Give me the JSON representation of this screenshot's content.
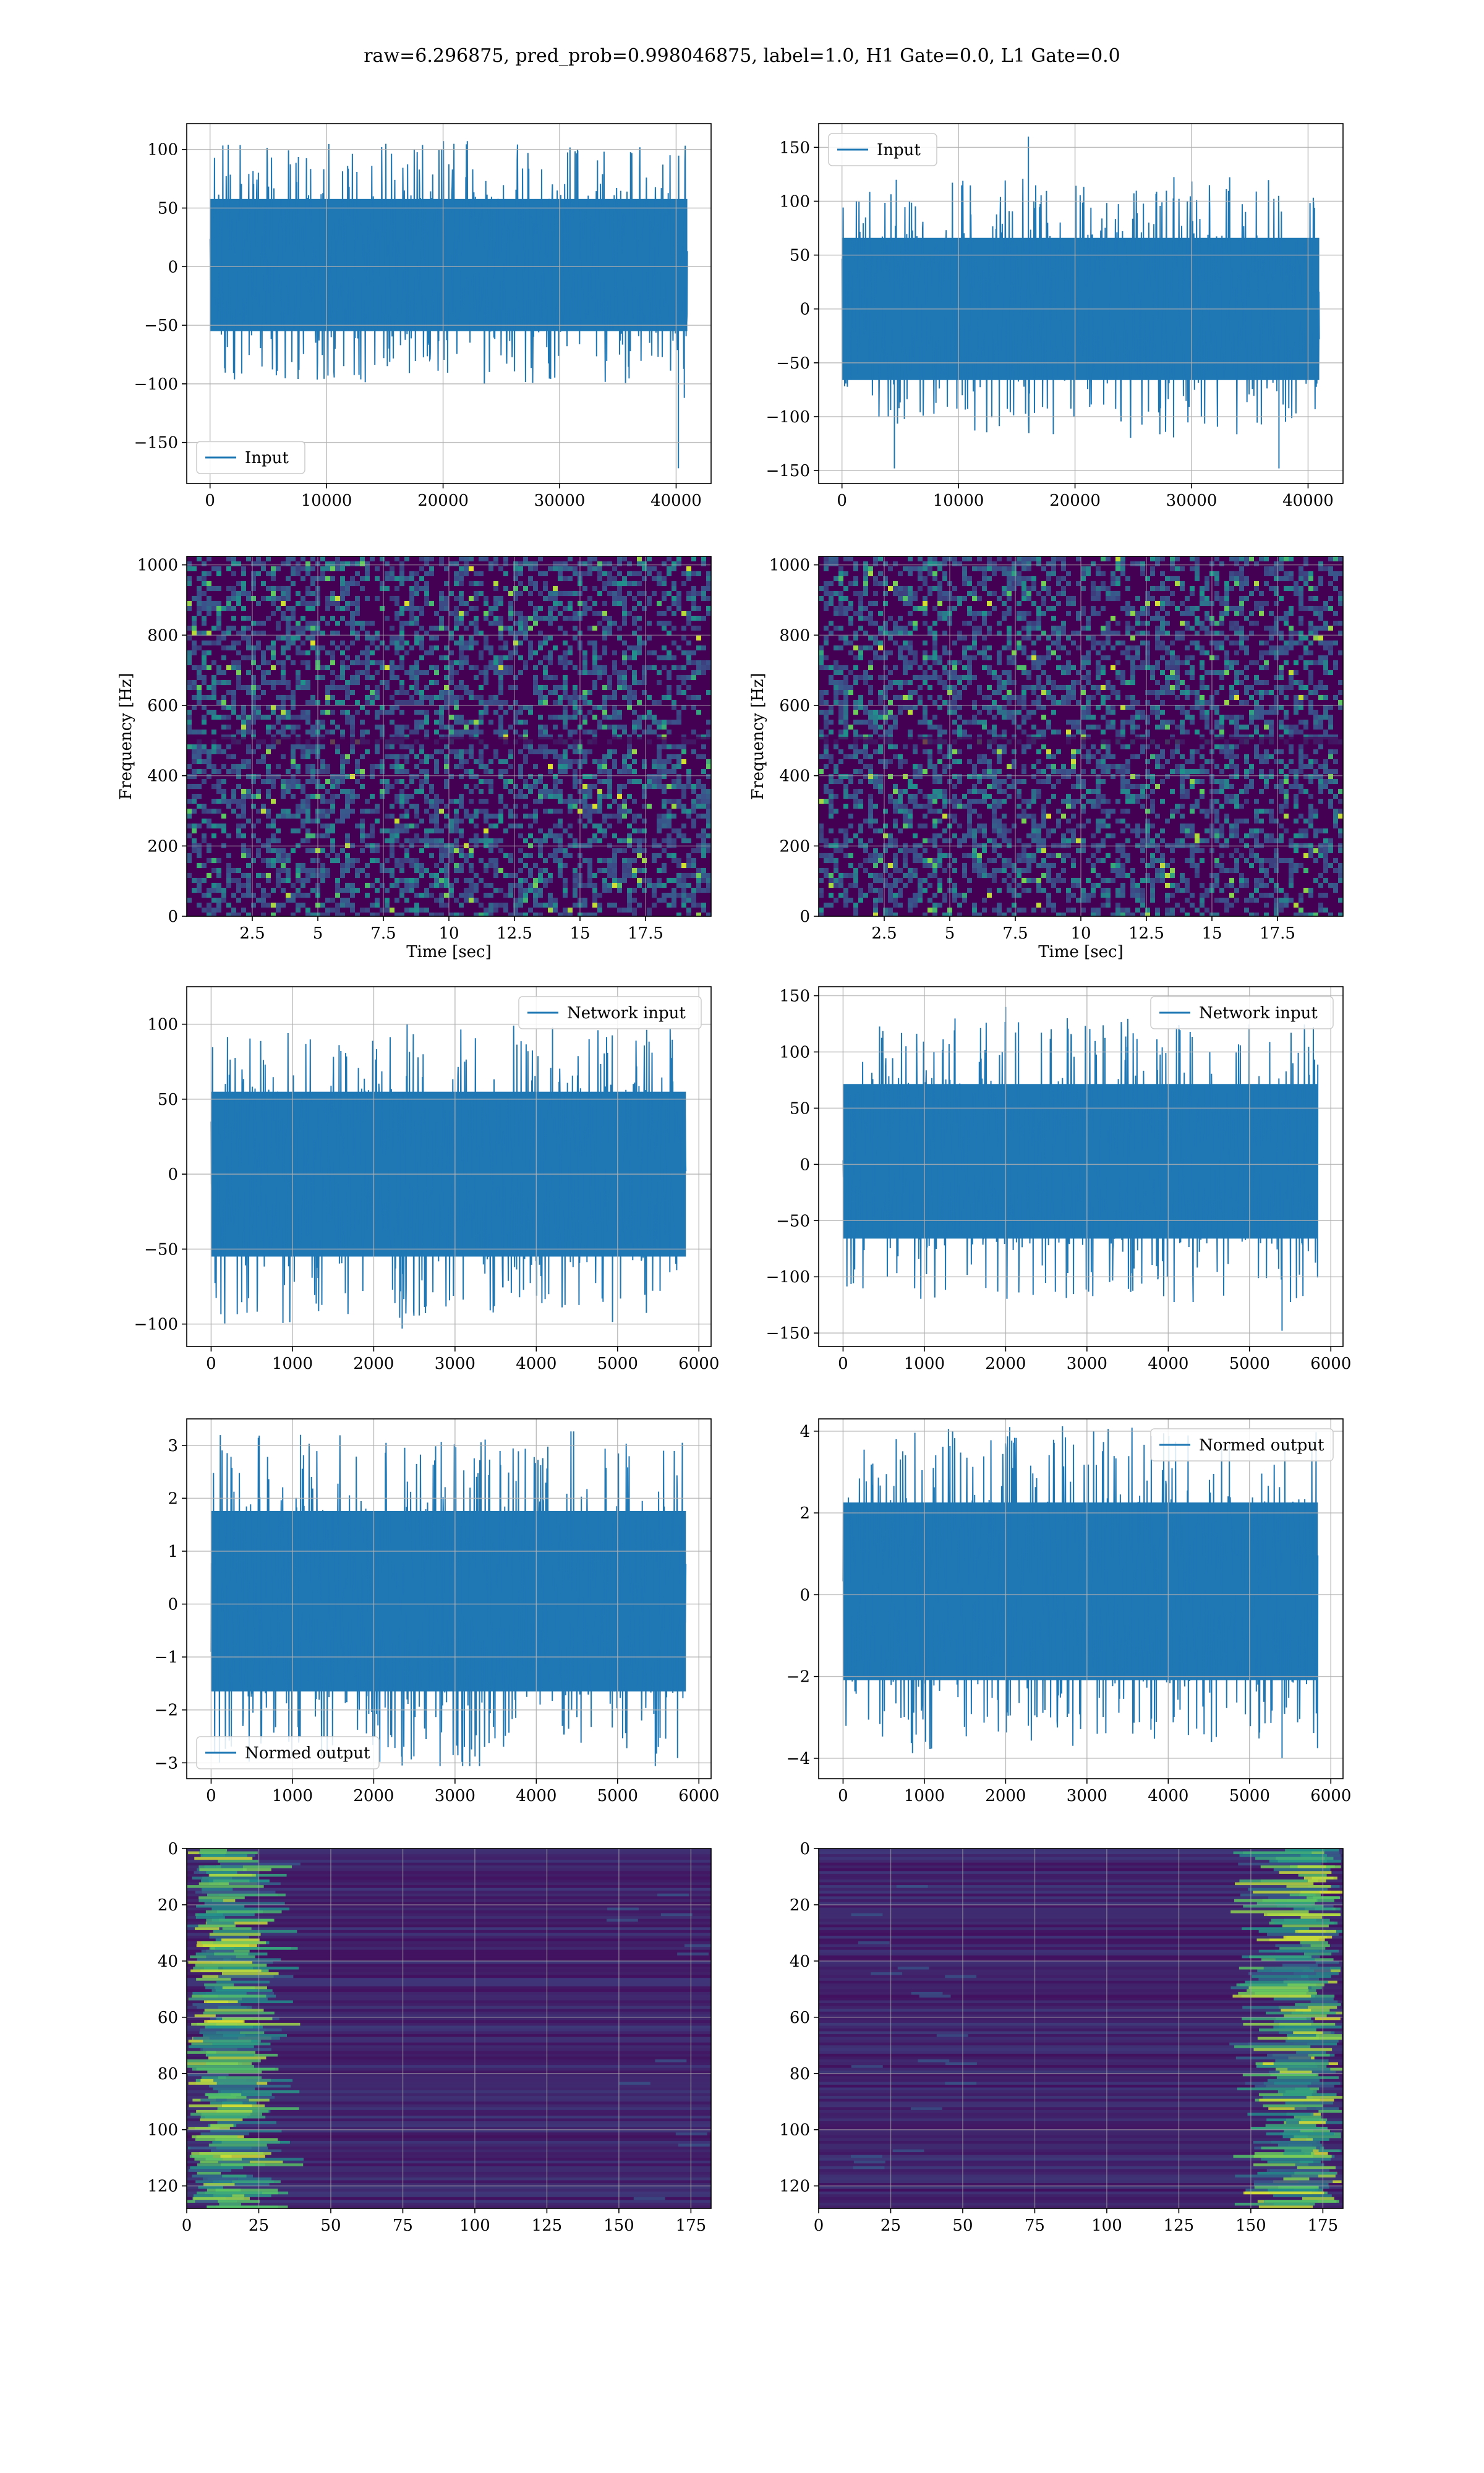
{
  "figure": {
    "title": "raw=6.296875, pred_prob=0.998046875, label=1.0, H1 Gate=0.0, L1 Gate=0.0"
  },
  "colors": {
    "series": "#1f77b4",
    "viridis_dark": "#440154",
    "viridis_mid": "#31688e",
    "viridis_teal": "#21918c",
    "viridis_green": "#5ec962",
    "viridis_yellow": "#fde725",
    "grid": "#b0b0b0"
  },
  "chart_data": [
    {
      "id": "input-h1",
      "type": "line",
      "legend": "Input",
      "legend_loc": "lower-left",
      "xlim": [
        -2000,
        43000
      ],
      "ylim": [
        -185,
        122
      ],
      "xticks": [
        0,
        10000,
        20000,
        30000,
        40000
      ],
      "yticks": [
        -150,
        -100,
        -50,
        0,
        50,
        100
      ],
      "series": [
        {
          "n_samples": 40960,
          "x_range": [
            0,
            40960
          ],
          "envelope": [
            -100,
            105
          ],
          "spikes": [
            {
              "x": 40200,
              "y": -172
            },
            {
              "x": 40700,
              "y": -112
            }
          ]
        }
      ],
      "xlabel": "",
      "ylabel": ""
    },
    {
      "id": "input-l1",
      "type": "line",
      "legend": "Input",
      "legend_loc": "upper-left",
      "xlim": [
        -2000,
        43000
      ],
      "ylim": [
        -162,
        172
      ],
      "xticks": [
        0,
        10000,
        20000,
        30000,
        40000
      ],
      "yticks": [
        -150,
        -100,
        -50,
        0,
        50,
        100,
        150
      ],
      "series": [
        {
          "n_samples": 40960,
          "x_range": [
            0,
            40960
          ],
          "envelope": [
            -120,
            120
          ],
          "spikes": [
            {
              "x": 16000,
              "y": 160
            },
            {
              "x": 4500,
              "y": -148
            },
            {
              "x": 37500,
              "y": -148
            }
          ]
        }
      ],
      "xlabel": "",
      "ylabel": ""
    },
    {
      "id": "spectrogram-h1",
      "type": "heatmap",
      "xlim": [
        0,
        20
      ],
      "ylim": [
        0,
        1024
      ],
      "xticks": [
        2.5,
        5.0,
        7.5,
        10.0,
        12.5,
        15.0,
        17.5
      ],
      "yticks": [
        0,
        200,
        400,
        600,
        800,
        1000
      ],
      "xlabel": "Time [sec]",
      "ylabel": "Frequency [Hz]"
    },
    {
      "id": "spectrogram-l1",
      "type": "heatmap",
      "xlim": [
        0,
        20
      ],
      "ylim": [
        0,
        1024
      ],
      "xticks": [
        2.5,
        5.0,
        7.5,
        10.0,
        12.5,
        15.0,
        17.5
      ],
      "yticks": [
        0,
        200,
        400,
        600,
        800,
        1000
      ],
      "xlabel": "Time [sec]",
      "ylabel": "Frequency [Hz]"
    },
    {
      "id": "network-input-h1",
      "type": "line",
      "legend": "Network input",
      "legend_loc": "upper-right",
      "xlim": [
        -300,
        6150
      ],
      "ylim": [
        -115,
        125
      ],
      "xticks": [
        0,
        1000,
        2000,
        3000,
        4000,
        5000,
        6000
      ],
      "yticks": [
        -100,
        -50,
        0,
        50,
        100
      ],
      "series": [
        {
          "n_samples": 5840,
          "x_range": [
            0,
            5840
          ],
          "envelope": [
            -100,
            100
          ],
          "spikes": [
            {
              "x": 2350,
              "y": -103
            },
            {
              "x": 4200,
              "y": 98
            }
          ]
        }
      ],
      "xlabel": "",
      "ylabel": ""
    },
    {
      "id": "network-input-l1",
      "type": "line",
      "legend": "Network input",
      "legend_loc": "upper-right",
      "xlim": [
        -300,
        6150
      ],
      "ylim": [
        -162,
        158
      ],
      "xticks": [
        0,
        1000,
        2000,
        3000,
        4000,
        5000,
        6000
      ],
      "yticks": [
        -150,
        -100,
        -50,
        0,
        50,
        100,
        150
      ],
      "series": [
        {
          "n_samples": 5840,
          "x_range": [
            0,
            5840
          ],
          "envelope": [
            -120,
            130
          ],
          "spikes": [
            {
              "x": 2000,
              "y": 140
            },
            {
              "x": 5400,
              "y": -148
            }
          ]
        }
      ],
      "xlabel": "",
      "ylabel": ""
    },
    {
      "id": "normed-output-h1",
      "type": "line",
      "legend": "Normed output",
      "legend_loc": "lower-left",
      "xlim": [
        -300,
        6150
      ],
      "ylim": [
        -3.3,
        3.5
      ],
      "xticks": [
        0,
        1000,
        2000,
        3000,
        4000,
        5000,
        6000
      ],
      "yticks": [
        -3,
        -2,
        -1,
        0,
        1,
        2,
        3
      ],
      "series": [
        {
          "n_samples": 5840,
          "x_range": [
            0,
            5840
          ],
          "envelope": [
            -3.0,
            3.2
          ],
          "spikes": [
            {
              "x": 1100,
              "y": 3.2
            },
            {
              "x": 2350,
              "y": -3.05
            }
          ]
        }
      ],
      "xlabel": "",
      "ylabel": ""
    },
    {
      "id": "normed-output-l1",
      "type": "line",
      "legend": "Normed output",
      "legend_loc": "upper-right",
      "xlim": [
        -300,
        6150
      ],
      "ylim": [
        -4.5,
        4.3
      ],
      "xticks": [
        0,
        1000,
        2000,
        3000,
        4000,
        5000,
        6000
      ],
      "yticks": [
        -4,
        -2,
        0,
        2,
        4
      ],
      "series": [
        {
          "n_samples": 5840,
          "x_range": [
            0,
            5840
          ],
          "envelope": [
            -3.8,
            4.1
          ],
          "spikes": [
            {
              "x": 2050,
              "y": 4.1
            },
            {
              "x": 5400,
              "y": -4.0
            }
          ]
        }
      ],
      "xlabel": "",
      "ylabel": ""
    },
    {
      "id": "feature-map-h1",
      "type": "heatmap",
      "yinverted": true,
      "xlim": [
        0,
        182
      ],
      "ylim": [
        128,
        0
      ],
      "xticks": [
        0,
        25,
        50,
        75,
        100,
        125,
        150,
        175
      ],
      "yticks": [
        0,
        20,
        40,
        60,
        80,
        100,
        120
      ],
      "bright_side": "left",
      "xlabel": "",
      "ylabel": ""
    },
    {
      "id": "feature-map-l1",
      "type": "heatmap",
      "yinverted": true,
      "xlim": [
        0,
        182
      ],
      "ylim": [
        128,
        0
      ],
      "xticks": [
        0,
        25,
        50,
        75,
        100,
        125,
        150,
        175
      ],
      "yticks": [
        0,
        20,
        40,
        60,
        80,
        100,
        120
      ],
      "bright_side": "right",
      "xlabel": "",
      "ylabel": ""
    }
  ]
}
